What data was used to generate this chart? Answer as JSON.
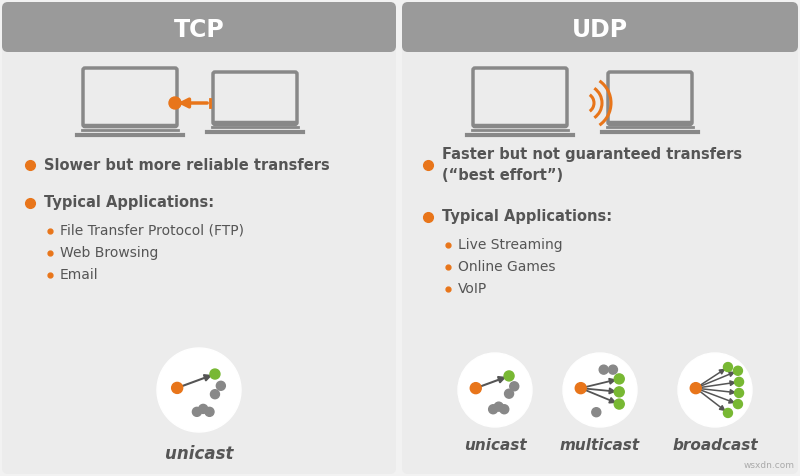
{
  "bg_color": "#f2f2f2",
  "panel_color": "#ececec",
  "title_bg_color": "#9a9a9a",
  "title_text_color": "#ffffff",
  "orange": "#e8751a",
  "green": "#78b833",
  "gray_dark": "#555555",
  "gray_med": "#888888",
  "gray_light": "#aaaaaa",
  "white": "#ffffff",
  "tcp_title": "TCP",
  "udp_title": "UDP",
  "tcp_bullet1": "Slower but more reliable transfers",
  "tcp_bullet2": "Typical Applications:",
  "tcp_sub_bullets": [
    "File Transfer Protocol (FTP)",
    "Web Browsing",
    "Email"
  ],
  "udp_bullet1": "Faster but not guaranteed transfers\n(“best effort”)",
  "udp_bullet2": "Typical Applications:",
  "udp_sub_bullets": [
    "Live Streaming",
    "Online Games",
    "VoIP"
  ],
  "tcp_cast_label": "unicast",
  "udp_cast_labels": [
    "unicast",
    "multicast",
    "broadcast"
  ],
  "watermark": "wsxdn.com"
}
